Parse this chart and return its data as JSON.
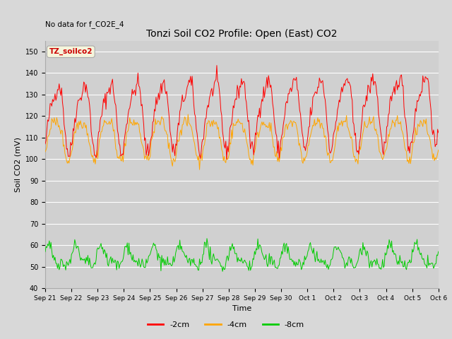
{
  "title": "Tonzi Soil CO2 Profile: Open (East) CO2",
  "ylabel": "Soil CO2 (mV)",
  "xlabel": "Time",
  "annotation": "No data for f_CO2E_4",
  "legend_label": "TZ_soilco2",
  "series_labels": [
    "-2cm",
    "-4cm",
    "-8cm"
  ],
  "series_colors": [
    "#ff0000",
    "#ffa500",
    "#00cc00"
  ],
  "ylim": [
    40,
    155
  ],
  "yticks": [
    40,
    50,
    60,
    70,
    80,
    90,
    100,
    110,
    120,
    130,
    140,
    150
  ],
  "xtick_labels": [
    "Sep 21",
    "Sep 22",
    "Sep 23",
    "Sep 24",
    "Sep 25",
    "Sep 26",
    "Sep 27",
    "Sep 28",
    "Sep 29",
    "Sep 30",
    "Oct 1",
    "Oct 2",
    "Oct 3",
    "Oct 4",
    "Oct 5",
    "Oct 6"
  ],
  "bg_color": "#d8d8d8",
  "plot_bg_color": "#d0d0d0",
  "grid_color": "#ffffff",
  "legend_box_color": "#f5f5dc",
  "legend_text_color": "#cc0000",
  "n_points": 480,
  "seed": 42
}
